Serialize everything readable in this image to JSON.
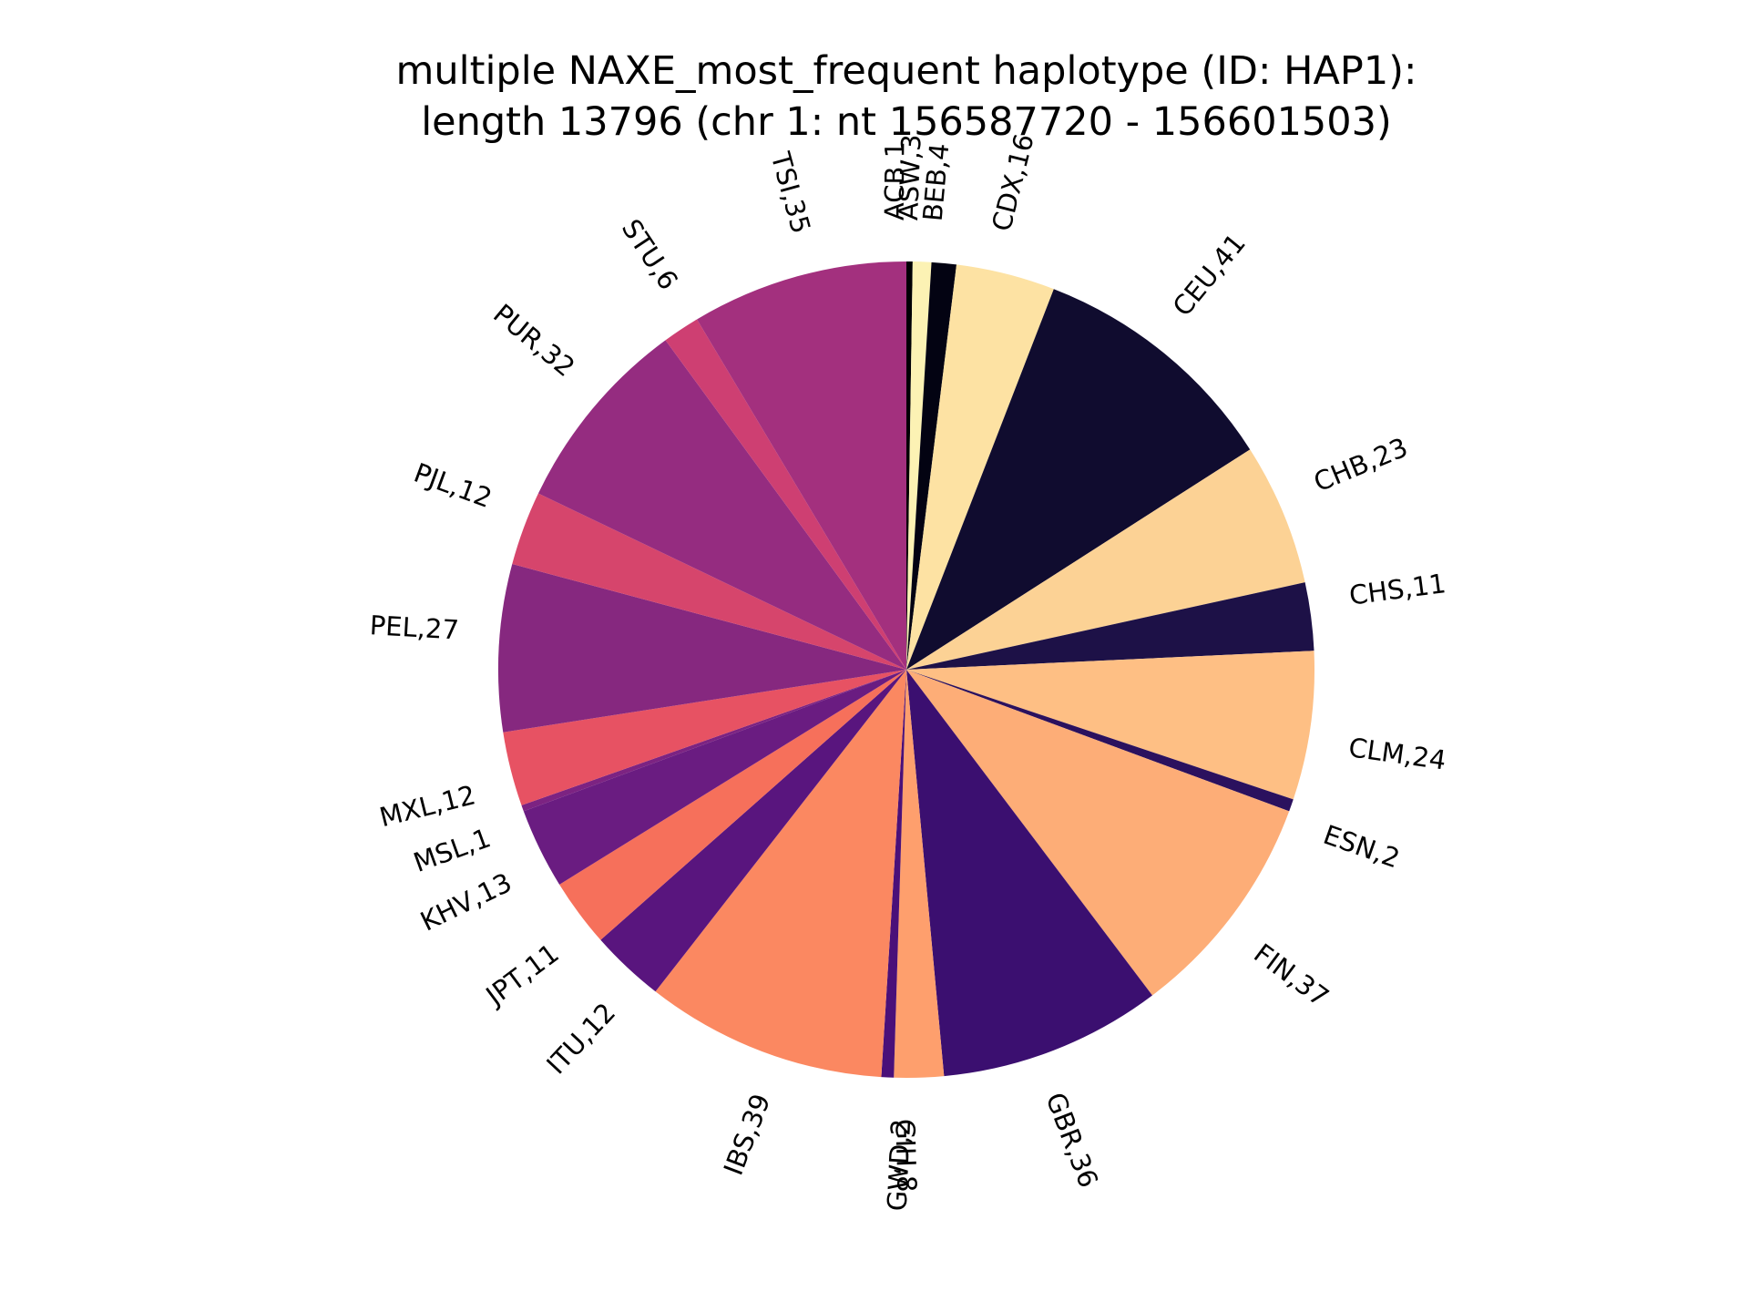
{
  "chart_data": {
    "type": "pie",
    "title_lines": [
      "multiple NAXE_most_frequent haplotype (ID: HAP1):",
      "length 13796 (chr 1: nt 156587720 - 156601503)"
    ],
    "start_angle_deg": 90,
    "direction": "clockwise",
    "slices": [
      {
        "label": "ACB,1",
        "value": 1,
        "color": "#000004"
      },
      {
        "label": "ASW,3",
        "value": 3,
        "color": "#fcf2b4"
      },
      {
        "label": "BEB,4",
        "value": 4,
        "color": "#030312"
      },
      {
        "label": "CDX,16",
        "value": 16,
        "color": "#fde2a3"
      },
      {
        "label": "CEU,41",
        "value": 41,
        "color": "#100c2f"
      },
      {
        "label": "CHB,23",
        "value": 23,
        "color": "#fcd295"
      },
      {
        "label": "CHS,11",
        "value": 11,
        "color": "#1d1147"
      },
      {
        "label": "CLM,24",
        "value": 24,
        "color": "#febf84"
      },
      {
        "label": "ESN,2",
        "value": 2,
        "color": "#2b115e"
      },
      {
        "label": "FIN,37",
        "value": 37,
        "color": "#fdad77"
      },
      {
        "label": "GBR,36",
        "value": 36,
        "color": "#3b0f70"
      },
      {
        "label": "GIH,8",
        "value": 8,
        "color": "#fe9f6d"
      },
      {
        "label": "GWD,2",
        "value": 2,
        "color": "#4a1079"
      },
      {
        "label": "IBS,39",
        "value": 39,
        "color": "#fb8861"
      },
      {
        "label": "ITU,12",
        "value": 12,
        "color": "#59157e"
      },
      {
        "label": "JPT,11",
        "value": 11,
        "color": "#f6705b"
      },
      {
        "label": "KHV,13",
        "value": 13,
        "color": "#6a1c81"
      },
      {
        "label": "MSL,1",
        "value": 1,
        "color": "#7c2382"
      },
      {
        "label": "MXL,12",
        "value": 12,
        "color": "#e75263"
      },
      {
        "label": "PEL,27",
        "value": 27,
        "color": "#86287f"
      },
      {
        "label": "PJL,12",
        "value": 12,
        "color": "#d6456c"
      },
      {
        "label": "PUR,32",
        "value": 32,
        "color": "#952c80"
      },
      {
        "label": "STU,6",
        "value": 6,
        "color": "#ce3f72"
      },
      {
        "label": "TSI,35",
        "value": 35,
        "color": "#a3307e"
      }
    ]
  }
}
